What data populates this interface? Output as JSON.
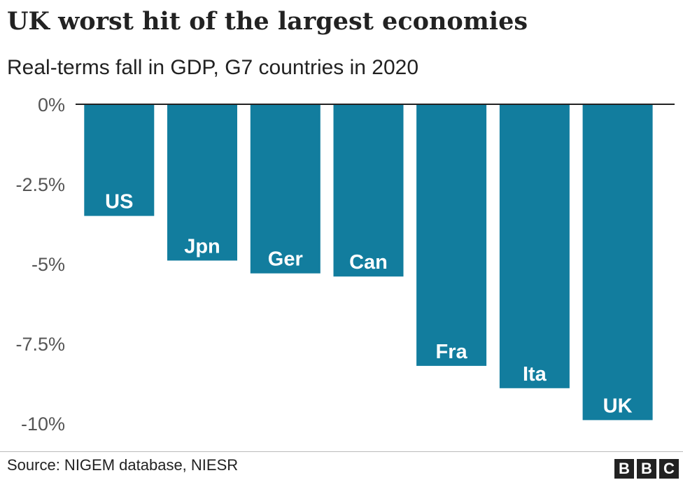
{
  "colors": {
    "bar": "#127d9e",
    "text": "#222222",
    "tick_text": "#555555",
    "bar_label": "#ffffff",
    "baseline": "#222222"
  },
  "header": {
    "title": "UK worst hit of the largest economies",
    "subtitle": "Real-terms fall in GDP, G7 countries in 2020"
  },
  "footer": {
    "source": "Source: NIGEM database, NIESR",
    "logo_letters": [
      "B",
      "B",
      "C"
    ]
  },
  "chart_data": {
    "type": "bar",
    "title": "UK worst hit of the largest economies",
    "subtitle": "Real-terms fall in GDP, G7 countries in 2020",
    "categories": [
      "US",
      "Jpn",
      "Ger",
      "Can",
      "Fra",
      "Ita",
      "UK"
    ],
    "values": [
      -3.5,
      -4.9,
      -5.3,
      -5.4,
      -8.2,
      -8.9,
      -9.9
    ],
    "unit": "%",
    "ylim": [
      -10,
      0
    ],
    "yticks": [
      0,
      -2.5,
      -5,
      -7.5,
      -10
    ],
    "ytick_labels": [
      "0%",
      "-2.5%",
      "-5%",
      "-7.5%",
      "-10%"
    ],
    "xlabel": "",
    "ylabel": "",
    "grid": false,
    "labels_inside_bars": true
  }
}
